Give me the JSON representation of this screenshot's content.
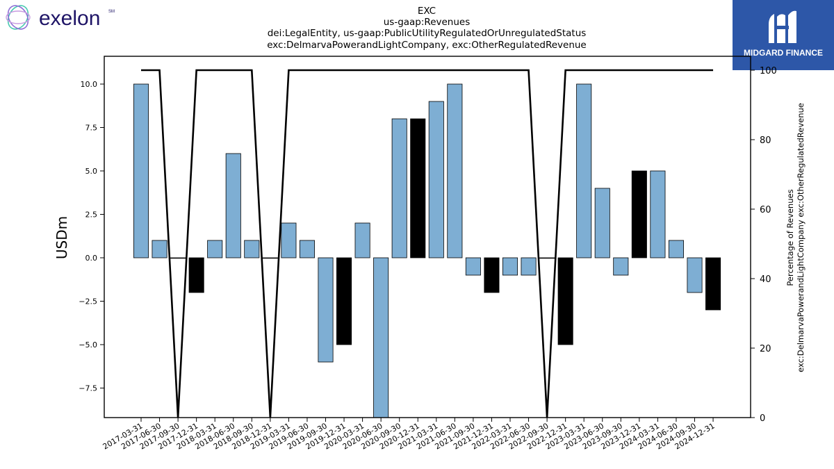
{
  "brand": {
    "left_logo_text": "exelon",
    "left_logo_mark": "SM",
    "right_logo_text": "MIDGARD FINANCE"
  },
  "colors": {
    "bar_positive_neutral": "#7eaed3",
    "bar_highlight": "#000000",
    "line": "#000000",
    "exelon_text": "#1e1466",
    "midgard_bg": "#2d57a8"
  },
  "chart_data": {
    "type": "bar",
    "title_lines": [
      "EXC",
      "us-gaap:Revenues",
      "dei:LegalEntity, us-gaap:PublicUtilityRegulatedOrUnregulatedStatus",
      "exc:DelmarvaPowerandLightCompany, exc:OtherRegulatedRevenue"
    ],
    "ylabel": "USDm",
    "y2label_lines": [
      "Percentage of Revenues",
      "exc:DelmarvaPowerandLightCompany exc:OtherRegulatedRevenue"
    ],
    "ylim": [
      -9.2,
      11.6
    ],
    "y2lim": [
      0,
      104
    ],
    "yticks": [
      "−7.5",
      "−5.0",
      "−2.5",
      "0.0",
      "2.5",
      "5.0",
      "7.5",
      "10.0"
    ],
    "ytick_values": [
      -7.5,
      -5.0,
      -2.5,
      0.0,
      2.5,
      5.0,
      7.5,
      10.0
    ],
    "y2ticks": [
      "0",
      "20",
      "40",
      "60",
      "80",
      "100"
    ],
    "y2tick_values": [
      0,
      20,
      40,
      60,
      80,
      100
    ],
    "categories": [
      "2017-03-31",
      "2017-06-30",
      "2017-09-30",
      "2017-12-31",
      "2018-03-31",
      "2018-06-30",
      "2018-09-30",
      "2018-12-31",
      "2019-03-31",
      "2019-06-30",
      "2019-09-30",
      "2019-12-31",
      "2020-03-31",
      "2020-06-30",
      "2020-09-30",
      "2020-12-31",
      "2021-03-31",
      "2021-06-30",
      "2021-09-30",
      "2021-12-31",
      "2022-03-31",
      "2022-06-30",
      "2022-09-30",
      "2022-12-31",
      "2023-03-31",
      "2023-06-30",
      "2023-09-30",
      "2023-12-31",
      "2024-03-31",
      "2024-06-30",
      "2024-09-30",
      "2024-12-31"
    ],
    "values": [
      10,
      1,
      0,
      -2,
      1,
      6,
      1,
      0,
      2,
      1,
      -6,
      -5,
      2,
      -10,
      8,
      8,
      9,
      10,
      -1,
      -2,
      -1,
      -1,
      0,
      -5,
      10,
      4,
      -1,
      5,
      5,
      1,
      -2,
      -3
    ],
    "highlight": [
      false,
      false,
      false,
      true,
      false,
      false,
      false,
      false,
      false,
      false,
      false,
      true,
      false,
      false,
      false,
      true,
      false,
      false,
      false,
      true,
      false,
      false,
      false,
      true,
      false,
      false,
      false,
      true,
      false,
      false,
      false,
      true
    ],
    "percentage_series": [
      100,
      100,
      0,
      100,
      100,
      100,
      100,
      0,
      100,
      100,
      100,
      100,
      100,
      100,
      100,
      100,
      100,
      100,
      100,
      100,
      100,
      100,
      0,
      100,
      100,
      100,
      100,
      100,
      100,
      100,
      100,
      100
    ],
    "grid": false
  }
}
